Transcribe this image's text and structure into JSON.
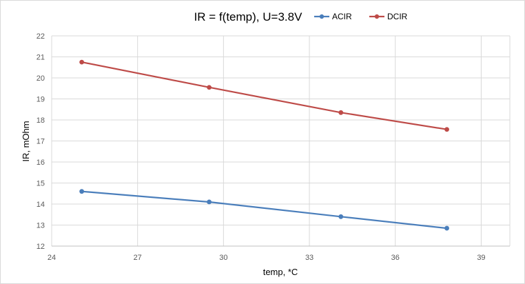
{
  "chart_data": {
    "type": "line",
    "title": "IR = f(temp),  U=3.8V",
    "xlabel": "temp, *C",
    "ylabel": "IR, mOhm",
    "xlim": [
      24,
      40
    ],
    "ylim": [
      12,
      22
    ],
    "xticks": [
      24,
      27,
      30,
      33,
      36,
      39
    ],
    "yticks": [
      12,
      13,
      14,
      15,
      16,
      17,
      18,
      19,
      20,
      21,
      22
    ],
    "grid": true,
    "legend_position": "top-right",
    "series": [
      {
        "name": "ACIR",
        "color": "#4a7ebb",
        "x": [
          25.05,
          29.5,
          34.1,
          37.8
        ],
        "y": [
          14.6,
          14.1,
          13.4,
          12.85
        ]
      },
      {
        "name": "DCIR",
        "color": "#be4b48",
        "x": [
          25.05,
          29.5,
          34.1,
          37.8
        ],
        "y": [
          20.75,
          19.55,
          18.35,
          17.55
        ]
      }
    ]
  }
}
